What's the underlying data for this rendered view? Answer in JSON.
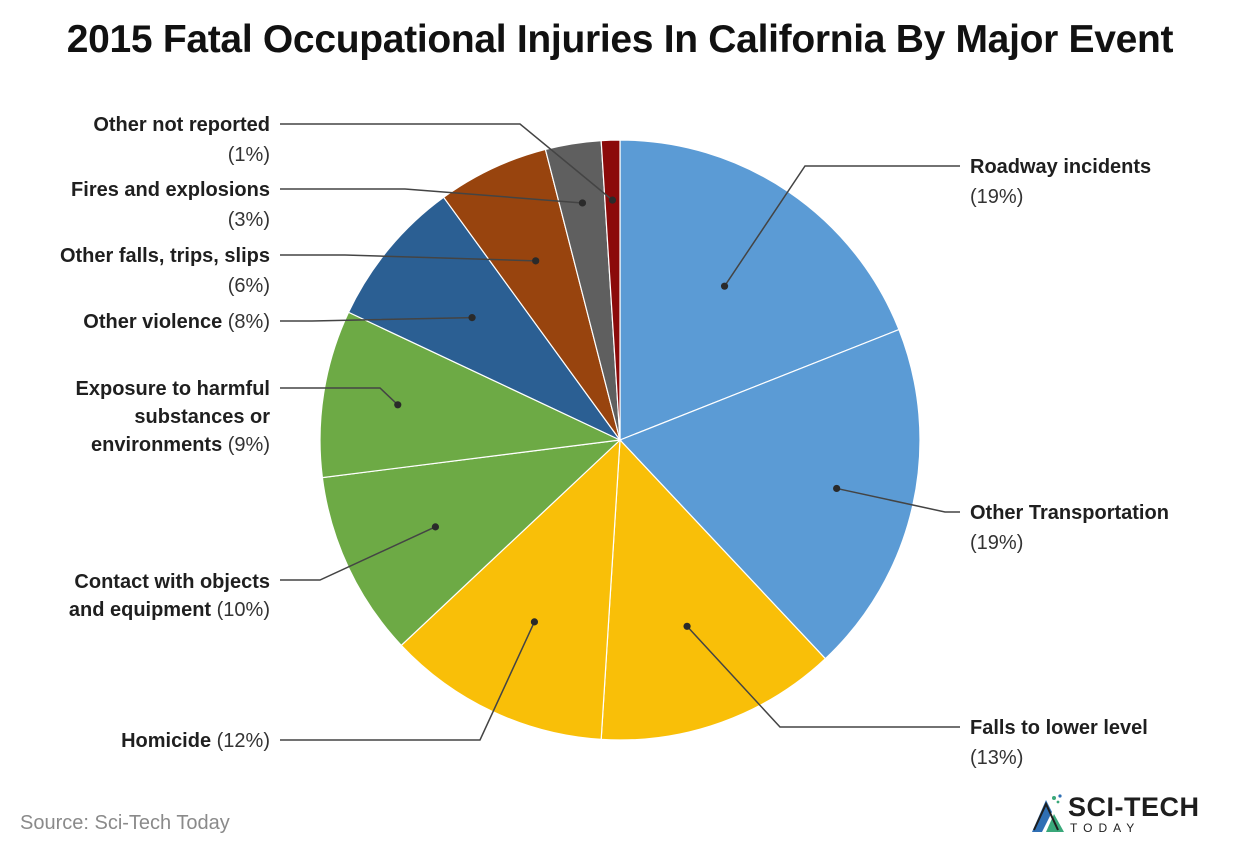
{
  "chart_data": {
    "type": "pie",
    "title": "2015 Fatal Occupational Injuries In California By Major Event",
    "slices": [
      {
        "label": "Roadway incidents",
        "pct_label": "(19%)",
        "value": 19,
        "color": "#5b9bd5"
      },
      {
        "label": "Other Transportation",
        "pct_label": "(19%)",
        "value": 19,
        "color": "#5b9bd5"
      },
      {
        "label": "Falls to lower level",
        "pct_label": "(13%)",
        "value": 13,
        "color": "#f9bf08"
      },
      {
        "label": "Homicide",
        "pct_label": "(12%)",
        "value": 12,
        "color": "#f9bf08"
      },
      {
        "label": "Contact with objects and equipment",
        "pct_label": "(10%)",
        "value": 10,
        "color": "#6daa45"
      },
      {
        "label": "Exposure to harmful substances or environments",
        "pct_label": "(9%)",
        "value": 9,
        "color": "#6daa45"
      },
      {
        "label": "Other violence",
        "pct_label": "(8%)",
        "value": 8,
        "color": "#2b5f93"
      },
      {
        "label": "Other falls, trips, slips",
        "pct_label": "(6%)",
        "value": 6,
        "color": "#98440e"
      },
      {
        "label": "Fires and explosions",
        "pct_label": "(3%)",
        "value": 3,
        "color": "#5f5f5f"
      },
      {
        "label": "Other not reported",
        "pct_label": "(1%)",
        "value": 1,
        "color": "#8b0a0a"
      }
    ]
  },
  "footer": {
    "source": "Source: Sci-Tech Today",
    "logo_main": "SCI-TECH",
    "logo_sub": "TODAY"
  }
}
